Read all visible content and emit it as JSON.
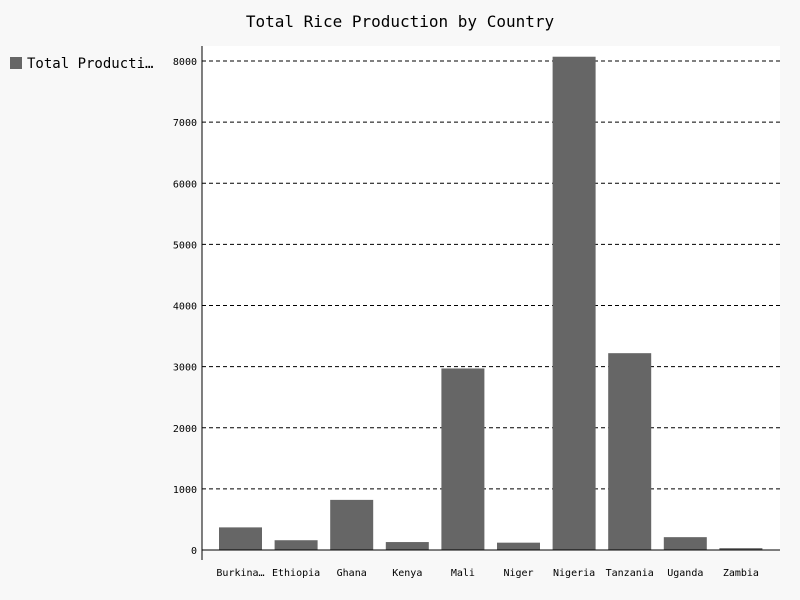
{
  "chart_data": {
    "type": "bar",
    "title": "Total Rice Production by Country",
    "xlabel": "",
    "ylabel": "",
    "categories": [
      "Burkina…",
      "Ethiopia",
      "Ghana",
      "Kenya",
      "Mali",
      "Niger",
      "Nigeria",
      "Tanzania",
      "Uganda",
      "Zambia"
    ],
    "series": [
      {
        "name": "Total Producti…",
        "values": [
          370,
          160,
          820,
          130,
          2970,
          120,
          8070,
          3220,
          210,
          30
        ]
      }
    ],
    "yticks": [
      "0",
      "1000",
      "2000",
      "3000",
      "4000",
      "5000",
      "6000",
      "7000",
      "8000"
    ],
    "ylim": [
      0,
      8200
    ],
    "grid": true,
    "legend_position": "top-left",
    "colors": {
      "bar": "#666666",
      "plot_background": "#ffffff",
      "page_background": "#f8f8f8",
      "gridline": "#000000"
    }
  }
}
